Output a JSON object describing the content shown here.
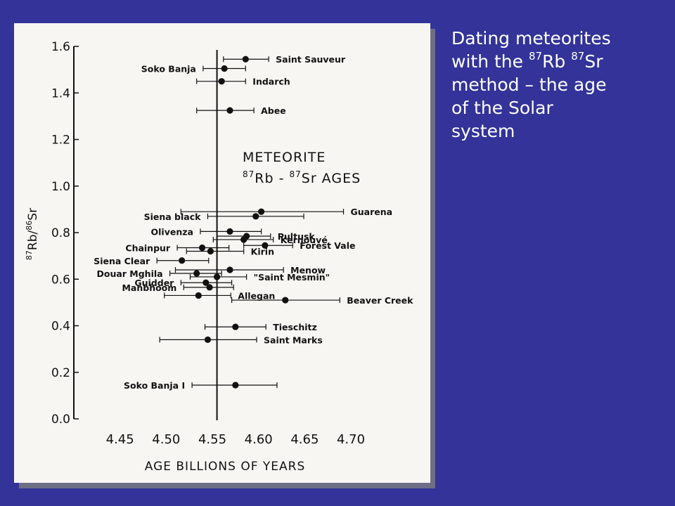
{
  "caption": {
    "line1": "Dating meteorites",
    "line2_pre": "with the ",
    "sup1": "87",
    "mid1": "Rb ",
    "sup2": "87",
    "mid2": "Sr",
    "line3": "method – the age",
    "line4": "of the Solar",
    "line5": "system"
  },
  "colors": {
    "background": "#333399",
    "caption_text": "#ffffff",
    "panel": "#f7f6f2",
    "ink": "#111111"
  },
  "chart_data": {
    "type": "scatter",
    "title_line1": "METEORITE",
    "title_line2_sup1": "87",
    "title_line2_mid1": "Rb - ",
    "title_line2_sup2": "87",
    "title_line2_mid2": "Sr AGES",
    "xlabel": "AGE BILLIONS OF YEARS",
    "ylabel_sup1": "87",
    "ylabel_mid": "Rb/",
    "ylabel_sup2": "86",
    "ylabel_end": "Sr",
    "xlim": [
      4.4,
      4.735
    ],
    "ylim": [
      0.0,
      1.6
    ],
    "xticks": [
      "4.45",
      "4.50",
      "4.55",
      "4.60",
      "4.65",
      "4.70"
    ],
    "xtick_values": [
      4.45,
      4.5,
      4.55,
      4.6,
      4.65,
      4.7
    ],
    "yticks": [
      "0.0",
      "0.2",
      "0.4",
      "0.6",
      "0.8",
      "1.0",
      "1.2",
      "1.4",
      "1.6"
    ],
    "ytick_values": [
      0.0,
      0.2,
      0.4,
      0.6,
      0.8,
      1.0,
      1.2,
      1.4,
      1.6
    ],
    "reference_age": 4.555,
    "grid": false,
    "points": [
      {
        "name": "Saint Sauveur",
        "age": 4.586,
        "ratio": 1.545,
        "err_low": 4.562,
        "err_high": 4.611,
        "label_side": "right"
      },
      {
        "name": "Soko Banja",
        "age": 4.563,
        "ratio": 1.505,
        "err_low": 4.54,
        "err_high": 4.586,
        "label_side": "left"
      },
      {
        "name": "Indarch",
        "age": 4.56,
        "ratio": 1.45,
        "err_low": 4.533,
        "err_high": 4.586,
        "label_side": "right"
      },
      {
        "name": "Abee",
        "age": 4.569,
        "ratio": 1.325,
        "err_low": 4.533,
        "err_high": 4.595,
        "label_side": "right"
      },
      {
        "name": "Guarena",
        "age": 4.603,
        "ratio": 0.89,
        "err_low": 4.516,
        "err_high": 4.692,
        "label_side": "right"
      },
      {
        "name": "Siena black",
        "age": 4.597,
        "ratio": 0.87,
        "err_low": 4.545,
        "err_high": 4.649,
        "label_side": "left"
      },
      {
        "name": "Olivenza",
        "age": 4.569,
        "ratio": 0.805,
        "err_low": 4.537,
        "err_high": 4.603,
        "label_side": "left"
      },
      {
        "name": "Pultusk",
        "age": 4.587,
        "ratio": 0.785,
        "err_low": 4.555,
        "err_high": 4.613,
        "label_side": "right"
      },
      {
        "name": "Kernouvé",
        "age": 4.584,
        "ratio": 0.77,
        "err_low": 4.551,
        "err_high": 4.616,
        "label_side": "right"
      },
      {
        "name": "Forest Vale",
        "age": 4.607,
        "ratio": 0.745,
        "err_low": 4.584,
        "err_high": 4.637,
        "label_side": "right"
      },
      {
        "name": "Chainpur",
        "age": 4.539,
        "ratio": 0.735,
        "err_low": 4.512,
        "err_high": 4.568,
        "label_side": "left"
      },
      {
        "name": "Kirin",
        "age": 4.548,
        "ratio": 0.72,
        "err_low": 4.522,
        "err_high": 4.584,
        "label_side": "right"
      },
      {
        "name": "Siena Clear",
        "age": 4.517,
        "ratio": 0.68,
        "err_low": 4.49,
        "err_high": 4.546,
        "label_side": "left"
      },
      {
        "name": "Menow",
        "age": 4.569,
        "ratio": 0.64,
        "err_low": 4.51,
        "err_high": 4.627,
        "label_side": "right"
      },
      {
        "name": "Douar Mghila",
        "age": 4.533,
        "ratio": 0.625,
        "err_low": 4.504,
        "err_high": 4.56,
        "label_side": "left"
      },
      {
        "name": "\"Saint Mesmin\"",
        "age": 4.555,
        "ratio": 0.61,
        "err_low": 4.526,
        "err_high": 4.587,
        "label_side": "right"
      },
      {
        "name": "Guidder",
        "age": 4.543,
        "ratio": 0.585,
        "err_low": 4.516,
        "err_high": 4.571,
        "label_side": "left"
      },
      {
        "name": "Manbhoom",
        "age": 4.547,
        "ratio": 0.565,
        "err_low": 4.519,
        "err_high": 4.573,
        "label_side": "left"
      },
      {
        "name": "Allegan",
        "age": 4.535,
        "ratio": 0.53,
        "err_low": 4.498,
        "err_high": 4.57,
        "label_side": "right"
      },
      {
        "name": "Beaver Creek",
        "age": 4.629,
        "ratio": 0.51,
        "err_low": 4.571,
        "err_high": 4.688,
        "label_side": "right"
      },
      {
        "name": "Tieschitz",
        "age": 4.575,
        "ratio": 0.395,
        "err_low": 4.542,
        "err_high": 4.608,
        "label_side": "right"
      },
      {
        "name": "Saint Marks",
        "age": 4.545,
        "ratio": 0.34,
        "err_low": 4.493,
        "err_high": 4.598,
        "label_side": "right"
      },
      {
        "name": "Soko Banja I",
        "age": 4.575,
        "ratio": 0.145,
        "err_low": 4.528,
        "err_high": 4.62,
        "label_side": "left"
      }
    ]
  }
}
